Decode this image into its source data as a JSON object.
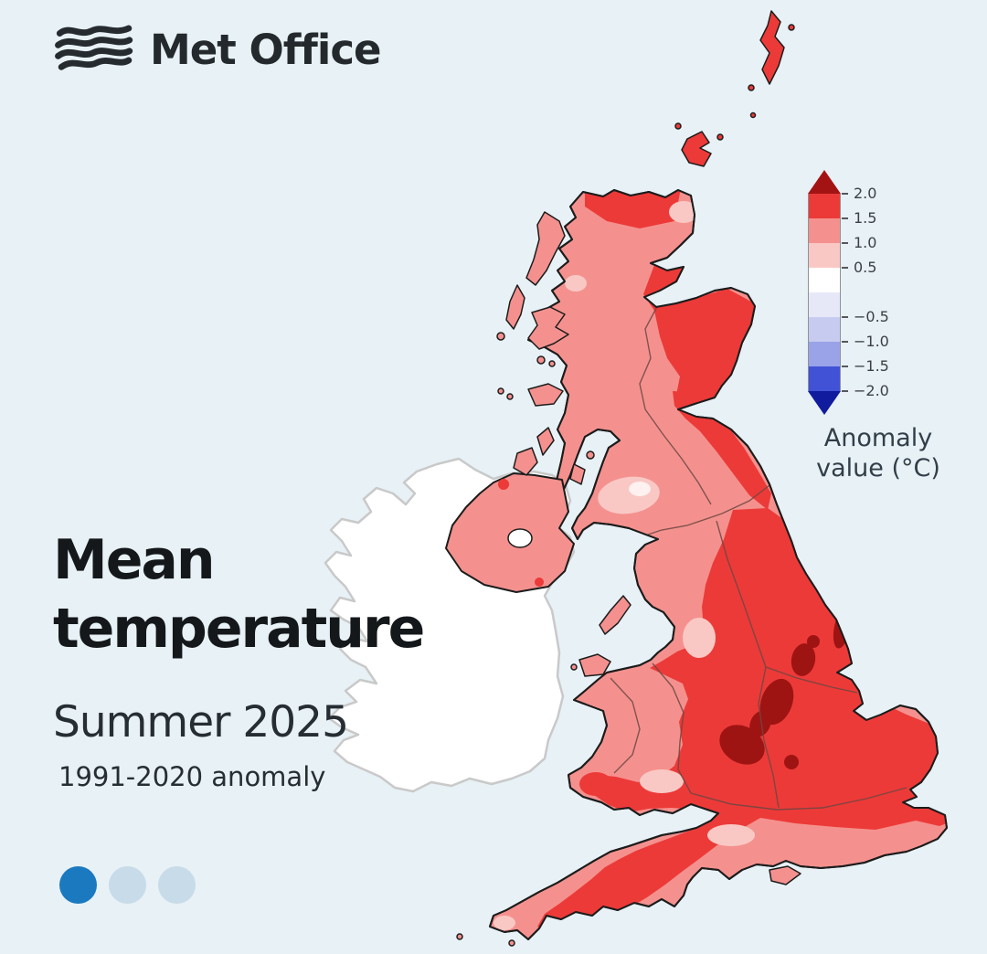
{
  "logo": {
    "brand": "Met Office"
  },
  "title": {
    "main": "Mean temperature",
    "season": "Summer 2025",
    "baseline": "1991-2020 anomaly"
  },
  "legend": {
    "label": "Anomaly value (°C)",
    "segments": [
      "#ec3a38",
      "#f4918e",
      "#f9c8c4",
      "#ffffff",
      "#e7e8f7",
      "#c7cbf0",
      "#9aa3e8",
      "#4152d6"
    ],
    "ticks": [
      {
        "label": "2.0",
        "pos": 0
      },
      {
        "label": "1.5",
        "pos": 1
      },
      {
        "label": "1.0",
        "pos": 2
      },
      {
        "label": "0.5",
        "pos": 3
      },
      {
        "label": "−0.5",
        "pos": 5
      },
      {
        "label": "−1.0",
        "pos": 6
      },
      {
        "label": "−1.5",
        "pos": 7
      },
      {
        "label": "−2.0",
        "pos": 8
      }
    ]
  },
  "pagination": {
    "dots": [
      {
        "active": true
      },
      {
        "active": false
      },
      {
        "active": false
      }
    ]
  },
  "colors": {
    "background": "#e7f1f6",
    "ink": "#24292d",
    "title_ink": "#15181b",
    "subtitle_ink": "#262d33",
    "legend_ink": "#3c4043",
    "anomaly_ink": "#323e48",
    "map_base_pink": "#f4918e",
    "map_red": "#ec3a38",
    "map_dark_red": "#9e1412",
    "map_light_pink": "#f9c8c4",
    "map_white": "#ffffff",
    "ireland_fill": "#ffffff",
    "ireland_stroke": "#c9c9c9",
    "coast_stroke": "#1c1c1c",
    "boundary_stroke": "#6e4742",
    "cb_arrow_top": "#a31313",
    "cb_arrow_bottom": "#111b9e",
    "dot_active": "#1b79c0",
    "dot_inactive": "#c8dbe9"
  },
  "chart_data": {
    "type": "heatmap",
    "title": "Mean temperature",
    "subtitle": "Summer 2025",
    "baseline_period": "1991-2020 anomaly",
    "legend_label": "Anomaly value (°C)",
    "units": "°C",
    "colorbar_ticks": [
      2.0,
      1.5,
      1.0,
      0.5,
      -0.5,
      -1.0,
      -1.5,
      -2.0
    ],
    "colorbar_range": [
      -2.0,
      2.0
    ],
    "colorbar_orientation": "vertical",
    "regions": [
      {
        "area": "Central and eastern England",
        "anomaly_c": "+1.5 to +2.0"
      },
      {
        "area": "East Midlands / Peak District hotspots",
        "anomaly_c": "above +2.0"
      },
      {
        "area": "North-east England coastal spots",
        "anomaly_c": "above +2.0"
      },
      {
        "area": "Eastern Scotland and north coast of Scotland",
        "anomaly_c": "+1.5 to +2.0"
      },
      {
        "area": "Western Scotland, Highlands and Hebrides",
        "anomaly_c": "+1.0 to +1.5"
      },
      {
        "area": "South-west Scotland patch",
        "anomaly_c": "+0.5 to +1.0"
      },
      {
        "area": "Wales (most areas)",
        "anomaly_c": "+1.0 to +1.5"
      },
      {
        "area": "South Wales coast and Pembrokeshire",
        "anomaly_c": "+1.5 to +2.0"
      },
      {
        "area": "North-west England coastal strip",
        "anomaly_c": "+1.0 to +1.5"
      },
      {
        "area": "South coast of England strip",
        "anomaly_c": "+1.0 to +1.5"
      },
      {
        "area": "Cornwall far west tip",
        "anomaly_c": "+0.5 to +1.0"
      },
      {
        "area": "Northern Ireland",
        "anomaly_c": "+1.0 to +1.5"
      },
      {
        "area": "Republic of Ireland",
        "anomaly_c": "no data (outside UK dataset)"
      }
    ]
  }
}
